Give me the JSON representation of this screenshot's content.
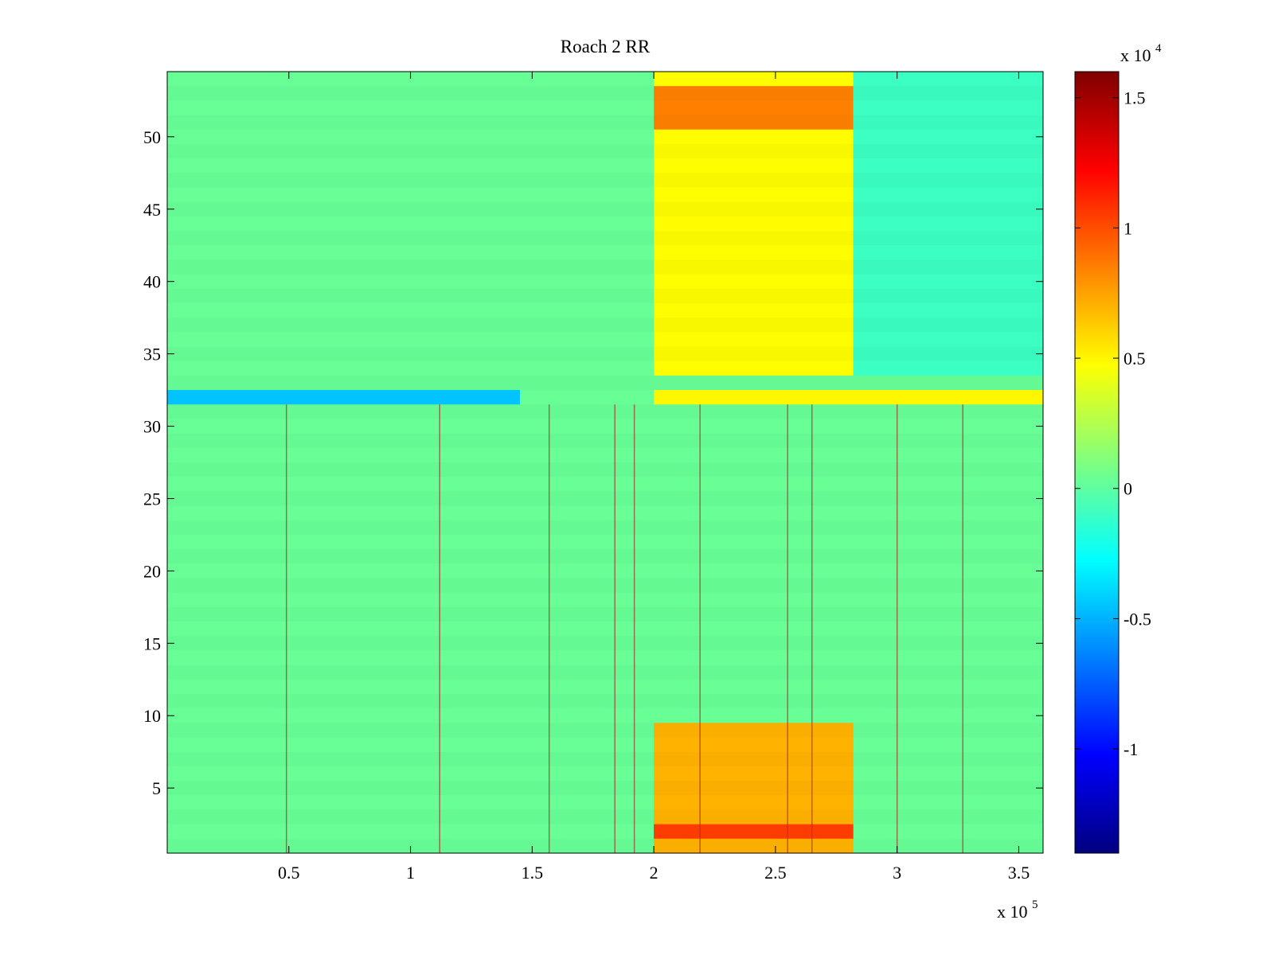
{
  "chart_data": {
    "type": "heatmap",
    "title": "Roach 2 RR",
    "xlabel": "",
    "ylabel": "",
    "x_multiplier_label": "x 10",
    "x_multiplier_exp": "5",
    "xlim": [
      0,
      3.6
    ],
    "ylim": [
      0.5,
      54.5
    ],
    "x_ticks": [
      0.5,
      1,
      1.5,
      2,
      2.5,
      3,
      3.5
    ],
    "x_tick_labels": [
      "0.5",
      "1",
      "1.5",
      "2",
      "2.5",
      "3",
      "3.5"
    ],
    "y_ticks": [
      5,
      10,
      15,
      20,
      25,
      30,
      35,
      40,
      45,
      50
    ],
    "y_tick_labels": [
      "5",
      "10",
      "15",
      "20",
      "25",
      "30",
      "35",
      "40",
      "45",
      "50"
    ],
    "n_rows": 54,
    "colorbar": {
      "colormap": "jet",
      "clim": [
        -14000,
        16000
      ],
      "multiplier_label": "x 10",
      "multiplier_exp": "4",
      "ticks": [
        -1,
        -0.5,
        0,
        0.5,
        1,
        1.5
      ],
      "tick_labels": [
        "-1",
        "-0.5",
        "0",
        "0.5",
        "1",
        "1.5"
      ]
    },
    "regions": [
      {
        "x_range": [
          0,
          3.6
        ],
        "y_range": [
          0.5,
          54.5
        ],
        "value": 300,
        "description": "background"
      },
      {
        "x_range": [
          2.0,
          2.82
        ],
        "y_range": [
          33.5,
          54.5
        ],
        "value": 4800
      },
      {
        "x_range": [
          2.0,
          2.82
        ],
        "y_range": [
          50.5,
          53.5
        ],
        "value": 8500
      },
      {
        "x_range": [
          2.0,
          2.82
        ],
        "y_range": [
          0.5,
          9.5
        ],
        "value": 7000
      },
      {
        "x_range": [
          2.0,
          2.82
        ],
        "y_range": [
          1.5,
          2.5
        ],
        "value": 10500
      },
      {
        "x_range": [
          0,
          1.45
        ],
        "y_range": [
          31.5,
          32.5
        ],
        "value": -4500
      },
      {
        "x_range": [
          2.0,
          3.6
        ],
        "y_range": [
          31.5,
          32.5
        ],
        "value": 5000
      },
      {
        "x_range": [
          2.82,
          3.6
        ],
        "y_range": [
          33.5,
          54.5
        ],
        "value": -1000
      }
    ],
    "spike_columns": [
      0.49,
      1.12,
      1.57,
      1.84,
      1.92,
      2.19,
      2.55,
      2.65,
      3.0,
      3.27
    ]
  }
}
